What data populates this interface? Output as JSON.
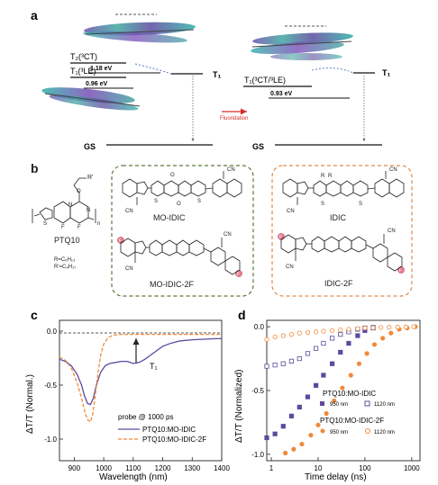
{
  "figure": {
    "panel_labels": [
      "a",
      "b",
      "c",
      "d"
    ],
    "colors": {
      "purple": "#5b4a9e",
      "orange": "#f08a3a",
      "red_arrow": "#d62b2b",
      "green_box": "#5a7a3a",
      "orange_box": "#e08a4a",
      "fluorine": "#e07a8a"
    }
  },
  "panel_a": {
    "left": {
      "t2_label": "T₂(³CT)",
      "gap1": "1.18 eV",
      "t1_label": "T₁(³LE)",
      "gap2": "0.96 eV",
      "t1_right": "T₁",
      "gs": "GS"
    },
    "arrow_label": "Fluoridation",
    "right": {
      "t1_label": "T₁(³CT/³LE)",
      "gap": "0.93 eV",
      "t1_right": "T₁",
      "gs": "GS"
    }
  },
  "panel_b": {
    "polymer": "PTQ10",
    "r_label": "R'",
    "r_def1": "R=C₆H₁₃",
    "r_def2": "R'=C₈H₁₇",
    "green_box": [
      "MO-IDIC",
      "MO-IDIC-2F"
    ],
    "orange_box": [
      "IDIC",
      "IDIC-2F"
    ],
    "atom_labels": {
      "f": "F",
      "s": "S",
      "n": "N",
      "o": "O",
      "cn": "CN",
      "r": "R",
      "n_sub": "n"
    }
  },
  "chart_data": [
    {
      "type": "line",
      "panel": "c",
      "xlabel": "Wavelength (nm)",
      "ylabel": "ΔT/T (Normal.)",
      "xlim": [
        850,
        1400
      ],
      "ylim": [
        -1.2,
        0.1
      ],
      "xticks": [
        900,
        1000,
        1100,
        1200,
        1300,
        1400
      ],
      "yticks": [
        0.0,
        -0.5,
        -1.0
      ],
      "ytick_labels": [
        "0.0",
        "-0.5",
        "-1.0"
      ],
      "annotations": [
        "T₁",
        "probe @ 1000 ps"
      ],
      "series": [
        {
          "name": "PTQ10:MO-IDIC",
          "style": "solid",
          "color": "#5b4a9e",
          "x": [
            850,
            870,
            890,
            910,
            925,
            935,
            945,
            955,
            965,
            975,
            990,
            1005,
            1020,
            1040,
            1060,
            1080,
            1100,
            1120,
            1140,
            1160,
            1180,
            1200,
            1230,
            1260,
            1300,
            1340,
            1380,
            1400
          ],
          "y": [
            -0.26,
            -0.28,
            -0.32,
            -0.4,
            -0.5,
            -0.6,
            -0.67,
            -0.68,
            -0.62,
            -0.5,
            -0.38,
            -0.32,
            -0.3,
            -0.29,
            -0.28,
            -0.28,
            -0.3,
            -0.29,
            -0.26,
            -0.22,
            -0.18,
            -0.14,
            -0.11,
            -0.09,
            -0.08,
            -0.075,
            -0.07,
            -0.07
          ]
        },
        {
          "name": "PTQ10:MO-IDIC-2F",
          "style": "dashed",
          "color": "#f08a3a",
          "x": [
            850,
            870,
            890,
            910,
            925,
            935,
            945,
            955,
            962,
            970,
            980,
            990,
            1000,
            1015,
            1030,
            1050,
            1070,
            1100,
            1140,
            1180,
            1220,
            1260,
            1300,
            1350,
            1400
          ],
          "y": [
            -0.24,
            -0.27,
            -0.34,
            -0.48,
            -0.62,
            -0.74,
            -0.82,
            -0.84,
            -0.78,
            -0.62,
            -0.4,
            -0.22,
            -0.12,
            -0.06,
            -0.04,
            -0.03,
            -0.03,
            -0.03,
            -0.03,
            -0.03,
            -0.03,
            -0.03,
            -0.03,
            -0.03,
            -0.03
          ]
        }
      ]
    },
    {
      "type": "scatter",
      "panel": "d",
      "xlabel": "Time delay (ns)",
      "ylabel": "ΔT/T (Normalized)",
      "xscale": "log",
      "xlim": [
        0.8,
        1500
      ],
      "ylim": [
        -1.05,
        0.05
      ],
      "xticks": [
        1,
        10,
        100,
        1000
      ],
      "yticks": [
        0.0,
        -0.5,
        -1.0
      ],
      "ytick_labels": [
        "0.0",
        "-0.5",
        "-1.0"
      ],
      "legend_groups": [
        {
          "title": "PTQ10:MO-IDIC",
          "entries": [
            "950 nm",
            "1120 nm"
          ]
        },
        {
          "title": "PTQ10:MO-IDIC-2F",
          "entries": [
            "950 nm",
            "1120 nm"
          ]
        }
      ],
      "series": [
        {
          "name": "950 nm",
          "group": "PTQ10:MO-IDIC",
          "marker": "square-filled",
          "color": "#5b4a9e",
          "x": [
            0.8,
            1.2,
            1.8,
            2.7,
            4,
            6,
            9,
            13,
            20,
            30,
            45,
            70,
            100,
            150
          ],
          "y": [
            -0.87,
            -0.84,
            -0.78,
            -0.7,
            -0.63,
            -0.55,
            -0.46,
            -0.38,
            -0.29,
            -0.2,
            -0.13,
            -0.07,
            -0.03,
            -0.01
          ]
        },
        {
          "name": "1120 nm",
          "group": "PTQ10:MO-IDIC",
          "marker": "square-open",
          "color": "#5b4a9e",
          "x": [
            0.8,
            1.2,
            1.8,
            2.7,
            4,
            6,
            9,
            13,
            20,
            30,
            45,
            70,
            100,
            150
          ],
          "y": [
            -0.31,
            -0.3,
            -0.29,
            -0.27,
            -0.25,
            -0.21,
            -0.17,
            -0.13,
            -0.09,
            -0.06,
            -0.04,
            -0.02,
            -0.01,
            -0.005
          ]
        },
        {
          "name": "950 nm",
          "group": "PTQ10:MO-IDIC-2F",
          "marker": "circle-filled",
          "color": "#f08a3a",
          "x": [
            2,
            3,
            4.5,
            7,
            10,
            15,
            22,
            33,
            50,
            75,
            110,
            160,
            240,
            360,
            540,
            800,
            1200
          ],
          "y": [
            -0.99,
            -0.96,
            -0.92,
            -0.85,
            -0.77,
            -0.68,
            -0.58,
            -0.48,
            -0.38,
            -0.29,
            -0.21,
            -0.14,
            -0.09,
            -0.05,
            -0.02,
            -0.01,
            0.0
          ]
        },
        {
          "name": "1120 nm",
          "group": "PTQ10:MO-IDIC-2F",
          "marker": "circle-open",
          "color": "#f08a3a",
          "x": [
            0.8,
            1.2,
            1.8,
            2.7,
            4,
            6,
            9,
            13,
            20,
            30,
            45,
            70,
            100,
            150,
            220,
            330,
            500,
            750,
            1100
          ],
          "y": [
            -0.1,
            -0.08,
            -0.07,
            -0.06,
            -0.05,
            -0.045,
            -0.04,
            -0.035,
            -0.03,
            -0.025,
            -0.02,
            -0.015,
            -0.01,
            -0.008,
            -0.006,
            -0.004,
            -0.003,
            -0.002,
            0.0
          ]
        }
      ]
    }
  ]
}
